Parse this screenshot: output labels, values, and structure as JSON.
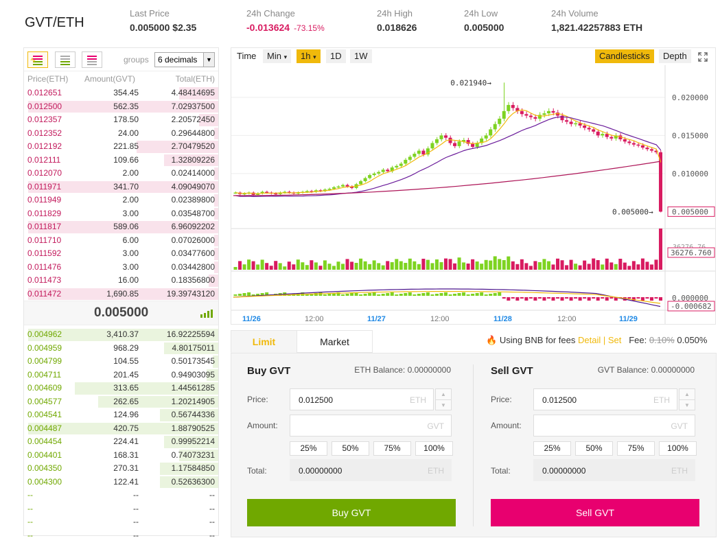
{
  "header": {
    "pair": "GVT/ETH",
    "last_price_label": "Last Price",
    "last_price": "0.005000",
    "last_price_usd": "$2.35",
    "change_label": "24h Change",
    "change": "-0.013624",
    "change_pct": "-73.15%",
    "high_label": "24h High",
    "high": "0.018626",
    "low_label": "24h Low",
    "low": "0.005000",
    "volume_label": "24h Volume",
    "volume": "1,821.42257883 ETH"
  },
  "orderbook": {
    "groups_label": "groups",
    "decimals": "6 decimals",
    "headers": {
      "price": "Price(ETH)",
      "amount": "Amount(GVT)",
      "total": "Total(ETH)"
    },
    "asks": [
      {
        "price": "0.012651",
        "amount": "354.45",
        "total": "4.48414695",
        "depth": 0.2
      },
      {
        "price": "0.012500",
        "amount": "562.35",
        "total": "7.02937500",
        "depth": 0.98
      },
      {
        "price": "0.012357",
        "amount": "178.50",
        "total": "2.20572450",
        "depth": 0.1
      },
      {
        "price": "0.012352",
        "amount": "24.00",
        "total": "0.29644800",
        "depth": 0.02
      },
      {
        "price": "0.012192",
        "amount": "221.85",
        "total": "2.70479520",
        "depth": 0.42
      },
      {
        "price": "0.012111",
        "amount": "109.66",
        "total": "1.32809226",
        "depth": 0.28
      },
      {
        "price": "0.012070",
        "amount": "2.00",
        "total": "0.02414000",
        "depth": 0.02
      },
      {
        "price": "0.011971",
        "amount": "341.70",
        "total": "4.09049070",
        "depth": 0.98
      },
      {
        "price": "0.011949",
        "amount": "2.00",
        "total": "0.02389800",
        "depth": 0.02
      },
      {
        "price": "0.011829",
        "amount": "3.00",
        "total": "0.03548700",
        "depth": 0.02
      },
      {
        "price": "0.011817",
        "amount": "589.06",
        "total": "6.96092202",
        "depth": 0.98
      },
      {
        "price": "0.011710",
        "amount": "6.00",
        "total": "0.07026000",
        "depth": 0.02
      },
      {
        "price": "0.011592",
        "amount": "3.00",
        "total": "0.03477600",
        "depth": 0.02
      },
      {
        "price": "0.011476",
        "amount": "3.00",
        "total": "0.03442800",
        "depth": 0.02
      },
      {
        "price": "0.011473",
        "amount": "16.00",
        "total": "0.18356800",
        "depth": 0.05
      },
      {
        "price": "0.011472",
        "amount": "1,690.85",
        "total": "19.39743120",
        "depth": 0.98
      }
    ],
    "last_price": "0.005000",
    "bids": [
      {
        "price": "0.004962",
        "amount": "3,410.37",
        "total": "16.92225594",
        "depth": 0.98
      },
      {
        "price": "0.004959",
        "amount": "968.29",
        "total": "4.80175011",
        "depth": 0.28
      },
      {
        "price": "0.004799",
        "amount": "104.55",
        "total": "0.50173545",
        "depth": 0.03
      },
      {
        "price": "0.004711",
        "amount": "201.45",
        "total": "0.94903095",
        "depth": 0.06
      },
      {
        "price": "0.004609",
        "amount": "313.65",
        "total": "1.44561285",
        "depth": 0.74
      },
      {
        "price": "0.004577",
        "amount": "262.65",
        "total": "1.20214905",
        "depth": 0.62
      },
      {
        "price": "0.004541",
        "amount": "124.96",
        "total": "0.56744336",
        "depth": 0.3
      },
      {
        "price": "0.004487",
        "amount": "420.75",
        "total": "1.88790525",
        "depth": 0.98
      },
      {
        "price": "0.004454",
        "amount": "224.41",
        "total": "0.99952214",
        "depth": 0.28
      },
      {
        "price": "0.004401",
        "amount": "168.31",
        "total": "0.74073231",
        "depth": 0.2
      },
      {
        "price": "0.004350",
        "amount": "270.31",
        "total": "1.17584850",
        "depth": 0.3
      },
      {
        "price": "0.004300",
        "amount": "122.41",
        "total": "0.52636300",
        "depth": 0.3
      },
      {
        "price": "--",
        "amount": "--",
        "total": "--",
        "depth": 0
      },
      {
        "price": "--",
        "amount": "--",
        "total": "--",
        "depth": 0
      },
      {
        "price": "--",
        "amount": "--",
        "total": "--",
        "depth": 0
      },
      {
        "price": "--",
        "amount": "--",
        "total": "--",
        "depth": 0
      }
    ]
  },
  "chart": {
    "toolbar": {
      "time": "Time",
      "min": "Min",
      "interval": "1h",
      "d1": "1D",
      "w1": "1W",
      "candlesticks": "Candlesticks",
      "depth": "Depth"
    },
    "price_axis": [
      "0.020000",
      "0.015000",
      "0.010000"
    ],
    "current_price_tag": "0.005000",
    "high_marker": "0.021940",
    "low_marker": "0.005000",
    "volume_tags": [
      "36276.76",
      "36276.760"
    ],
    "macd_tags": [
      "0.000000",
      "-0.000682"
    ],
    "time_axis": [
      "11/26",
      "12:00",
      "11/27",
      "12:00",
      "11/28",
      "12:00",
      "11/29"
    ]
  },
  "trade": {
    "tab_limit": "Limit",
    "tab_market": "Market",
    "bnb_text": "Using BNB for fees",
    "detail": "Detail",
    "sep": "|",
    "set": "Set",
    "fee_label": "Fee:",
    "fee_old": "0.10%",
    "fee_new": "0.050%",
    "price_label": "Price:",
    "amount_label": "Amount:",
    "total_label": "Total:",
    "pcts": [
      "25%",
      "50%",
      "75%",
      "100%"
    ],
    "buy": {
      "title": "Buy GVT",
      "balance": "ETH Balance: 0.00000000",
      "price": "0.012500",
      "price_unit": "ETH",
      "amount_unit": "GVT",
      "total": "0.00000000",
      "total_unit": "ETH",
      "button": "Buy GVT"
    },
    "sell": {
      "title": "Sell GVT",
      "balance": "GVT Balance: 0.00000000",
      "price": "0.012500",
      "price_unit": "ETH",
      "amount_unit": "GVT",
      "total": "0.00000000",
      "total_unit": "ETH",
      "button": "Sell GVT"
    }
  },
  "colors": {
    "accent": "#f0b90b",
    "buy": "#70a800",
    "sell": "#e8006f",
    "candle_up": "#7ed321",
    "candle_down": "#d81b60"
  }
}
